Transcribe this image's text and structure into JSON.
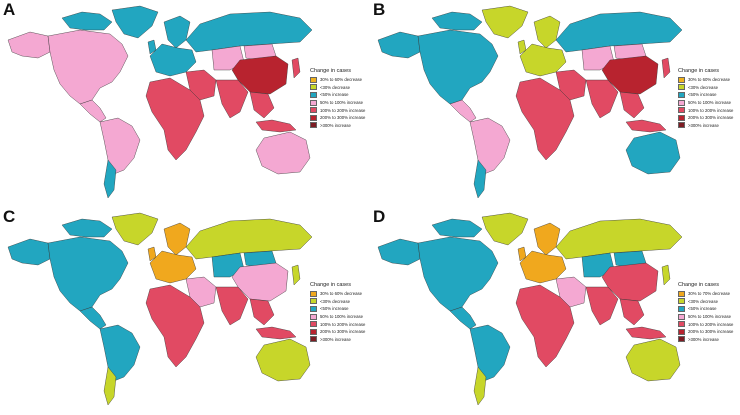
{
  "colors": {
    "pink": "#f4a8d2",
    "teal": "#22a6c0",
    "yellow": "#ecd21e",
    "olive": "#c7d62a",
    "red": "#e14a63",
    "darkred": "#b8232f",
    "maroon": "#7d1c23",
    "orange": "#f0a81e",
    "blue": "#3ba0d6",
    "border": "#333333"
  },
  "panels": [
    {
      "letter": "A",
      "legend": {
        "title": "Change in  cases",
        "items": [
          {
            "label": "30% to 60% decrease",
            "color": "#f0b21e"
          },
          {
            "label": "<30% decrease",
            "color": "#c7d62a"
          },
          {
            "label": "<50% increase",
            "color": "#22a6c0"
          },
          {
            "label": "50% to 100% increase",
            "color": "#f4a8d2"
          },
          {
            "label": "100% to 200% increase",
            "color": "#e14a63"
          },
          {
            "label": "200% to 300% increase",
            "color": "#b8232f"
          },
          {
            "label": ">300% increase",
            "color": "#7d1c23"
          }
        ]
      },
      "regions": {
        "north_america": "pink",
        "alaska": "pink",
        "arctic_islands": "teal",
        "greenland": "teal",
        "central_america": "pink",
        "south_america": "pink",
        "south_cone": "teal",
        "europe": "teal",
        "scandinavia": "teal",
        "russia": "teal",
        "middle_east": "red",
        "africa": "red",
        "central_asia": "pink",
        "india": "red",
        "china": "darkred",
        "mongolia": "pink",
        "southeast_asia": "red",
        "indonesia": "red",
        "japan": "red",
        "australia": "pink",
        "uk": "teal"
      }
    },
    {
      "letter": "B",
      "legend": {
        "title": "Change in  cases",
        "items": [
          {
            "label": "30% to 60% decrease",
            "color": "#f0b21e"
          },
          {
            "label": "<30% decrease",
            "color": "#c7d62a"
          },
          {
            "label": "<50% increase",
            "color": "#22a6c0"
          },
          {
            "label": "50% to 100% increase",
            "color": "#f4a8d2"
          },
          {
            "label": "100% to 200% increase",
            "color": "#e14a63"
          },
          {
            "label": "200% to 300% increase",
            "color": "#b8232f"
          },
          {
            "label": ">300% increase",
            "color": "#7d1c23"
          }
        ]
      },
      "regions": {
        "north_america": "teal",
        "alaska": "teal",
        "arctic_islands": "teal",
        "greenland": "olive",
        "central_america": "pink",
        "south_america": "pink",
        "south_cone": "teal",
        "europe": "olive",
        "scandinavia": "olive",
        "russia": "teal",
        "middle_east": "red",
        "africa": "red",
        "central_asia": "pink",
        "india": "red",
        "china": "darkred",
        "mongolia": "pink",
        "southeast_asia": "red",
        "indonesia": "red",
        "japan": "red",
        "australia": "teal",
        "uk": "olive"
      }
    },
    {
      "letter": "C",
      "legend": {
        "title": "Change in  cases",
        "items": [
          {
            "label": "30% to 60% decrease",
            "color": "#f0a81e"
          },
          {
            "label": "<30% decrease",
            "color": "#c7d62a"
          },
          {
            "label": "<50% increase",
            "color": "#22a6c0"
          },
          {
            "label": "50% to 100% increase",
            "color": "#f4a8d2"
          },
          {
            "label": "100% to 200% increase",
            "color": "#e14a63"
          },
          {
            "label": "200% to 300% increase",
            "color": "#b8232f"
          },
          {
            "label": ">300% increase",
            "color": "#7d1c23"
          }
        ]
      },
      "regions": {
        "north_america": "teal",
        "alaska": "teal",
        "arctic_islands": "teal",
        "greenland": "olive",
        "central_america": "teal",
        "south_america": "teal",
        "south_cone": "olive",
        "europe": "orange",
        "scandinavia": "orange",
        "russia": "olive",
        "middle_east": "pink",
        "africa": "red",
        "central_asia": "teal",
        "india": "red",
        "china": "pink",
        "mongolia": "teal",
        "southeast_asia": "red",
        "indonesia": "red",
        "japan": "olive",
        "australia": "olive",
        "uk": "orange"
      }
    },
    {
      "letter": "D",
      "legend": {
        "title": "Change in  cases",
        "items": [
          {
            "label": "30% to 70% decrease",
            "color": "#f0a81e"
          },
          {
            "label": "<30% decrease",
            "color": "#c7d62a"
          },
          {
            "label": "<50% increase",
            "color": "#22a6c0"
          },
          {
            "label": "50% to 100% increase",
            "color": "#f4a8d2"
          },
          {
            "label": "100% to 200% increase",
            "color": "#e14a63"
          },
          {
            "label": "200% to 300% increase",
            "color": "#b8232f"
          },
          {
            "label": ">300% increase",
            "color": "#7d1c23"
          }
        ]
      },
      "regions": {
        "north_america": "teal",
        "alaska": "teal",
        "arctic_islands": "teal",
        "greenland": "olive",
        "central_america": "teal",
        "south_america": "teal",
        "south_cone": "olive",
        "europe": "orange",
        "scandinavia": "orange",
        "russia": "olive",
        "middle_east": "pink",
        "africa": "red",
        "central_asia": "teal",
        "india": "red",
        "china": "red",
        "mongolia": "teal",
        "southeast_asia": "red",
        "indonesia": "red",
        "japan": "olive",
        "australia": "olive",
        "uk": "orange"
      }
    }
  ]
}
